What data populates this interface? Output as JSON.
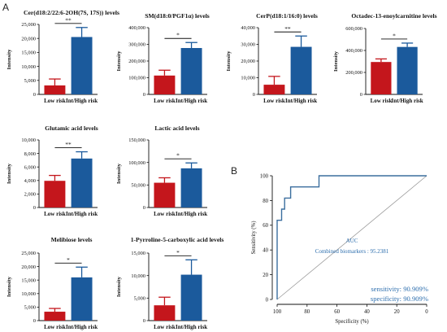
{
  "figure": {
    "panel_a_label": "A",
    "panel_b_label": "B"
  },
  "colors": {
    "low_risk": "#c4161c",
    "high_risk": "#1b5a9c",
    "roc_line": "#3b6e9e",
    "annotation": "#2e6fae"
  },
  "chart_data": [
    {
      "type": "bar",
      "title": "Cer(d18:2/22:6-2OH(7S, 17S)) levels",
      "ylabel": "Intensity",
      "categories": [
        "Low risk",
        "Int/High risk"
      ],
      "values": [
        3200,
        20500
      ],
      "errors": [
        2300,
        3400
      ],
      "ylim": [
        0,
        25000
      ],
      "yticks": [
        "0",
        "5,000",
        "10,000",
        "15,000",
        "20,000",
        "25,000"
      ],
      "significance": "**"
    },
    {
      "type": "bar",
      "title": "SM(d18:0/PGF1α) levels",
      "ylabel": "Intensity",
      "categories": [
        "Low risk",
        "Int/High risk"
      ],
      "values": [
        113000,
        278000
      ],
      "errors": [
        32000,
        33000
      ],
      "ylim": [
        0,
        400000
      ],
      "yticks": [
        "0",
        "100,000",
        "200,000",
        "300,000",
        "400,000"
      ],
      "significance": "*"
    },
    {
      "type": "bar",
      "title": "CerP(d18:1/16:0) levels",
      "ylabel": "Intensity",
      "categories": [
        "Low risk",
        "Int/High risk"
      ],
      "values": [
        5800,
        28500
      ],
      "errors": [
        5000,
        6500
      ],
      "ylim": [
        0,
        40000
      ],
      "yticks": [
        "0",
        "10,000",
        "20,000",
        "30,000",
        "40,000"
      ],
      "significance": "**"
    },
    {
      "type": "bar",
      "title": "Octadec-13-enoylcarnitine levels",
      "ylabel": "Intensity",
      "categories": [
        "Low risk",
        "Int/High risk"
      ],
      "values": [
        295000,
        432000
      ],
      "errors": [
        28000,
        35000
      ],
      "ylim": [
        0,
        600000
      ],
      "yticks": [
        "0",
        "200,000",
        "400,000",
        "600,000"
      ],
      "significance": "*"
    },
    {
      "type": "bar",
      "title": "Glutamic acid levels",
      "ylabel": "Intensity",
      "categories": [
        "Low risk",
        "Int/High risk"
      ],
      "values": [
        3950,
        7250
      ],
      "errors": [
        800,
        1000
      ],
      "ylim": [
        0,
        10000
      ],
      "yticks": [
        "0",
        "2,000",
        "4,000",
        "6,000",
        "8,000",
        "10,000"
      ],
      "significance": "**"
    },
    {
      "type": "bar",
      "title": "Lactic acid levels",
      "ylabel": "Intensity",
      "categories": [
        "Low risk",
        "Int/High risk"
      ],
      "values": [
        55000,
        87000
      ],
      "errors": [
        11000,
        12000
      ],
      "ylim": [
        0,
        150000
      ],
      "yticks": [
        "0",
        "50,000",
        "100,000",
        "150,000"
      ],
      "significance": "*"
    },
    {
      "type": "bar",
      "title": "Melibiose levels",
      "ylabel": "Intensity",
      "categories": [
        "Low risk",
        "Int/High risk"
      ],
      "values": [
        3300,
        16000
      ],
      "errors": [
        1200,
        3800
      ],
      "ylim": [
        0,
        25000
      ],
      "yticks": [
        "0",
        "5,000",
        "10,000",
        "15,000",
        "20,000",
        "25,000"
      ],
      "significance": "*"
    },
    {
      "type": "bar",
      "title": "1-Pyrroline-5-carboxylic acid levels",
      "ylabel": "Intensity",
      "categories": [
        "Low risk",
        "Int/High risk"
      ],
      "values": [
        3400,
        10200
      ],
      "errors": [
        1800,
        3300
      ],
      "ylim": [
        0,
        15000
      ],
      "yticks": [
        "0",
        "5,000",
        "10,000",
        "15,000"
      ],
      "significance": "*"
    },
    {
      "type": "line",
      "title": "",
      "xlabel": "Specificity (%)",
      "ylabel": "Sensitivity (%)",
      "xlim": [
        100,
        0
      ],
      "ylim": [
        0,
        100
      ],
      "xticks": [
        "100",
        "80",
        "60",
        "40",
        "20",
        "0"
      ],
      "yticks": [
        "0",
        "20",
        "40",
        "60",
        "80",
        "100"
      ],
      "series": [
        {
          "name": "Combined biomarkers",
          "x": [
            100,
            100,
            97,
            97,
            95,
            95,
            91,
            91,
            72,
            72,
            0
          ],
          "y": [
            0,
            64,
            64,
            73,
            73,
            82,
            82,
            91,
            91,
            100,
            100
          ]
        }
      ],
      "reference_line": {
        "x": [
          100,
          0
        ],
        "y": [
          0,
          100
        ]
      },
      "auc_label": "AUC",
      "auc_text": "Combined biomarkers : 95.2381",
      "sensitivity_text": "sensitivity: 90.909%",
      "specificity_text": "specificity: 90.909%"
    }
  ]
}
